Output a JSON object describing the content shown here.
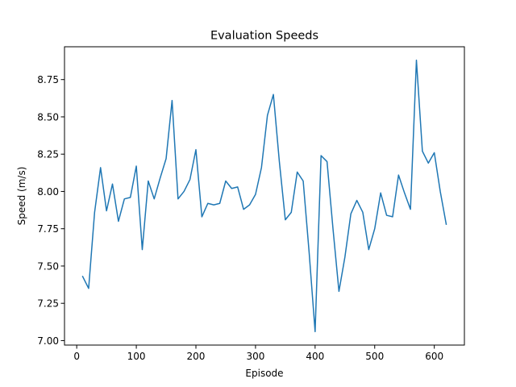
{
  "chart_data": {
    "type": "line",
    "title": "Evaluation Speeds",
    "xlabel": "Episode",
    "ylabel": "Speed (m/s)",
    "xlim": [
      -20.5,
      650.5
    ],
    "ylim": [
      6.97,
      8.97
    ],
    "xticks": [
      0,
      100,
      200,
      300,
      400,
      500,
      600
    ],
    "yticks": [
      7.0,
      7.25,
      7.5,
      7.75,
      8.0,
      8.25,
      8.5,
      8.75
    ],
    "ytick_labels": [
      "7.00",
      "7.25",
      "7.50",
      "7.75",
      "8.00",
      "8.25",
      "8.50",
      "8.75"
    ],
    "grid": false,
    "series": [
      {
        "color": "#1f77b4",
        "x": [
          10,
          20,
          30,
          40,
          50,
          60,
          70,
          80,
          90,
          100,
          110,
          120,
          130,
          140,
          150,
          160,
          170,
          180,
          190,
          200,
          210,
          220,
          230,
          240,
          250,
          260,
          270,
          280,
          290,
          300,
          310,
          320,
          330,
          340,
          350,
          360,
          370,
          380,
          390,
          400,
          410,
          420,
          430,
          440,
          450,
          460,
          470,
          480,
          490,
          500,
          510,
          520,
          530,
          540,
          550,
          560,
          570,
          580,
          590,
          600,
          610,
          620
        ],
        "y": [
          7.43,
          7.35,
          7.86,
          8.16,
          7.87,
          8.05,
          7.8,
          7.95,
          7.96,
          8.17,
          7.61,
          8.07,
          7.95,
          8.09,
          8.22,
          8.61,
          7.95,
          8.0,
          8.08,
          8.28,
          7.83,
          7.92,
          7.91,
          7.92,
          8.07,
          8.02,
          8.03,
          7.88,
          7.91,
          7.98,
          8.16,
          8.51,
          8.65,
          8.2,
          7.81,
          7.86,
          8.13,
          8.07,
          7.59,
          7.06,
          8.24,
          8.2,
          7.75,
          7.33,
          7.56,
          7.85,
          7.94,
          7.86,
          7.61,
          7.75,
          7.99,
          7.84,
          7.83,
          8.11,
          7.99,
          7.88,
          8.88,
          8.27,
          8.19,
          8.26,
          8.0,
          7.78
        ]
      }
    ]
  }
}
